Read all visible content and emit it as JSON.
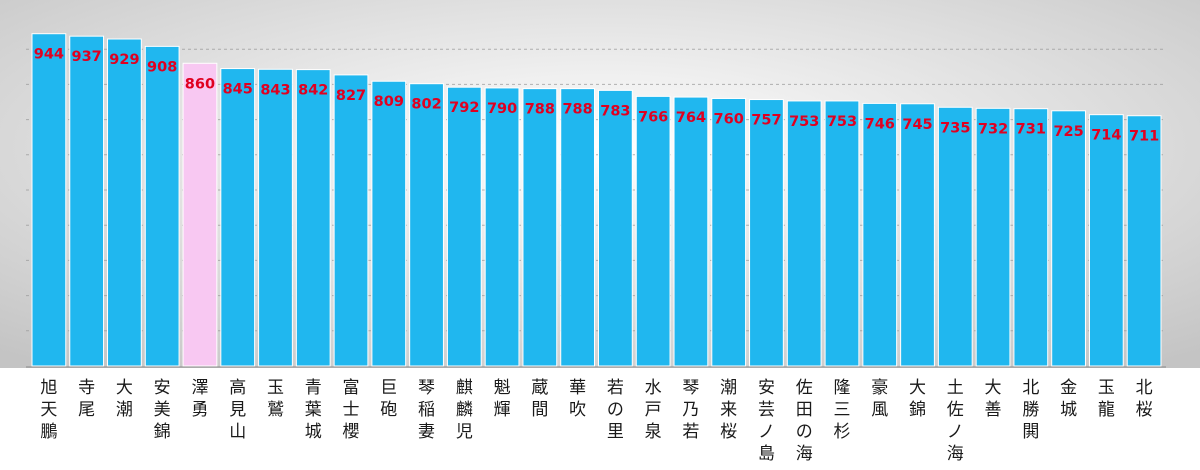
{
  "chart_data": {
    "type": "bar",
    "categories": [
      "旭天鵬",
      "寺尾",
      "大潮",
      "安美錦",
      "澤勇",
      "高見山",
      "玉鷲",
      "青葉城",
      "富士櫻",
      "巨砲",
      "琴稲妻",
      "麒麟児",
      "魁輝",
      "蔵間",
      "華吹",
      "若の里",
      "水戸泉",
      "琴乃若",
      "潮来桜",
      "安芸ノ島",
      "佐田の海",
      "隆三杉",
      "豪風",
      "大錦",
      "土佐ノ海",
      "大善",
      "北勝閧",
      "金城",
      "玉龍",
      "北桜"
    ],
    "values": [
      944,
      937,
      929,
      908,
      860,
      845,
      843,
      842,
      827,
      809,
      802,
      792,
      790,
      788,
      788,
      783,
      766,
      764,
      760,
      757,
      753,
      753,
      746,
      745,
      735,
      732,
      731,
      725,
      714,
      711
    ],
    "highlight_index": 4,
    "ylim": [
      0,
      1000
    ],
    "grid": true,
    "title": "",
    "xlabel": "",
    "ylabel": "",
    "colors": {
      "bar": "#20b7ef",
      "highlight_bar": "#f8c8f2",
      "value_label": "#e00020",
      "category_label": "#1a1a1a",
      "plot_bg_center": "#ffffff",
      "plot_bg_edge": "#c4c4c4"
    }
  }
}
